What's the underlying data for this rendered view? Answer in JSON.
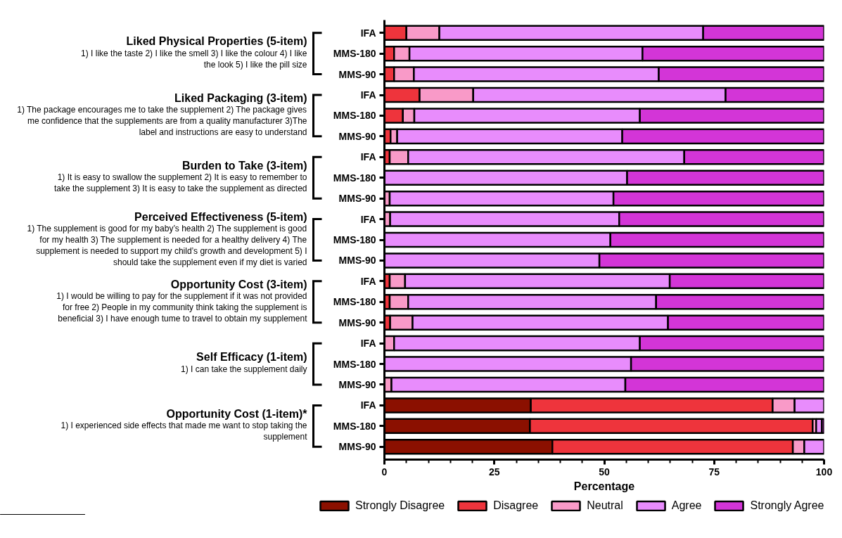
{
  "chart_data": {
    "type": "bar",
    "orientation": "horizontal",
    "stacked": true,
    "xlabel": "Percentage",
    "categories": [
      "IFA",
      "MMS-180",
      "MMS-90",
      "IFA",
      "MMS-180",
      "MMS-90",
      "IFA",
      "MMS-180",
      "MMS-90",
      "IFA",
      "MMS-180",
      "MMS-90",
      "IFA",
      "MMS-180",
      "MMS-90",
      "IFA",
      "MMS-180",
      "MMS-90",
      "IFA",
      "MMS-180",
      "MMS-90"
    ],
    "series": [
      {
        "name": "Strongly Disagree",
        "color": "#8b1000",
        "values": [
          null,
          0,
          0,
          0,
          null,
          0,
          0,
          0,
          0,
          0,
          0,
          0,
          0,
          0,
          0,
          0,
          0,
          0,
          33.3,
          33.1,
          38.2
        ]
      },
      {
        "name": "Disagree",
        "color": "#ee343c",
        "values": [
          5,
          2.2,
          2.2,
          8,
          4.2,
          1.4,
          1.2,
          0,
          0,
          0,
          0,
          0,
          1.2,
          1.2,
          1.3,
          null,
          0,
          0,
          55,
          64.3,
          54.7
        ]
      },
      {
        "name": "Neutral",
        "color": "#f99ac8",
        "values": [
          7.5,
          3.5,
          4.5,
          12.2,
          2.6,
          1.5,
          4.2,
          null,
          1.2,
          1.3,
          0,
          0,
          3.5,
          4.2,
          5.1,
          2.2,
          null,
          1.6,
          5,
          0.8,
          2.6
        ]
      },
      {
        "name": "Agree",
        "color": "#e88cfc",
        "values": [
          60,
          53,
          55.7,
          57.4,
          51.3,
          51.2,
          62.8,
          55.2,
          50.9,
          52.1,
          51.4,
          48.9,
          60.2,
          56.4,
          58.1,
          55.9,
          56.1,
          53.2,
          6.7,
          1.3,
          4.5
        ]
      },
      {
        "name": "Strongly Agree",
        "color": "#d335d7",
        "values": [
          27.5,
          41.3,
          37.6,
          22.4,
          41.9,
          45.9,
          31.8,
          44.8,
          47.9,
          46.6,
          48.6,
          51.1,
          35.1,
          38.2,
          35.5,
          41.9,
          43.9,
          45.2,
          0,
          0.5,
          0
        ]
      }
    ],
    "xlim": [
      0,
      100
    ],
    "xticks": [
      0,
      25,
      50,
      75,
      100
    ],
    "legend": "bottom",
    "annotations": [
      "Liked Physical Properties (5-item)",
      "1) I like the taste 2) I like the smell 3) I like the colour 4) I like the look 5) I like the pill size",
      "Liked Packaging (3-item)",
      "1) The package encourages me to take the supplement 2) The package gives me confidence that the supplements are from a quality manufacturer 3)The label and instructions are easy to understand",
      "Burden to Take (3-item)",
      "1) It is easy to swallow the supplement 2) It is easy to remember to take the supplement 3) It is easy to take the supplement as directed",
      "Perceived Effectiveness (5-item)",
      "1) The supplement is good for my baby’s health 2) The supplement is good for my health 3) The supplement is needed for a healthy delivery 4) The supplement is needed to support my child’s growth and development 5) I should take the supplement even if my diet is varied",
      "Opportunity Cost (3-item)",
      "1) I would be willing to pay for the supplement if it was not provided for free 2) People in my community think taking the supplement is beneficial 3) I have enough tume to travel to obtain my supplement",
      "Self Efficacy (1-item)",
      "1) I can take the supplement daily",
      "Opportunity Cost (1-item)*",
      "1) I experienced side effects that made me want to stop taking the supplement"
    ]
  }
}
